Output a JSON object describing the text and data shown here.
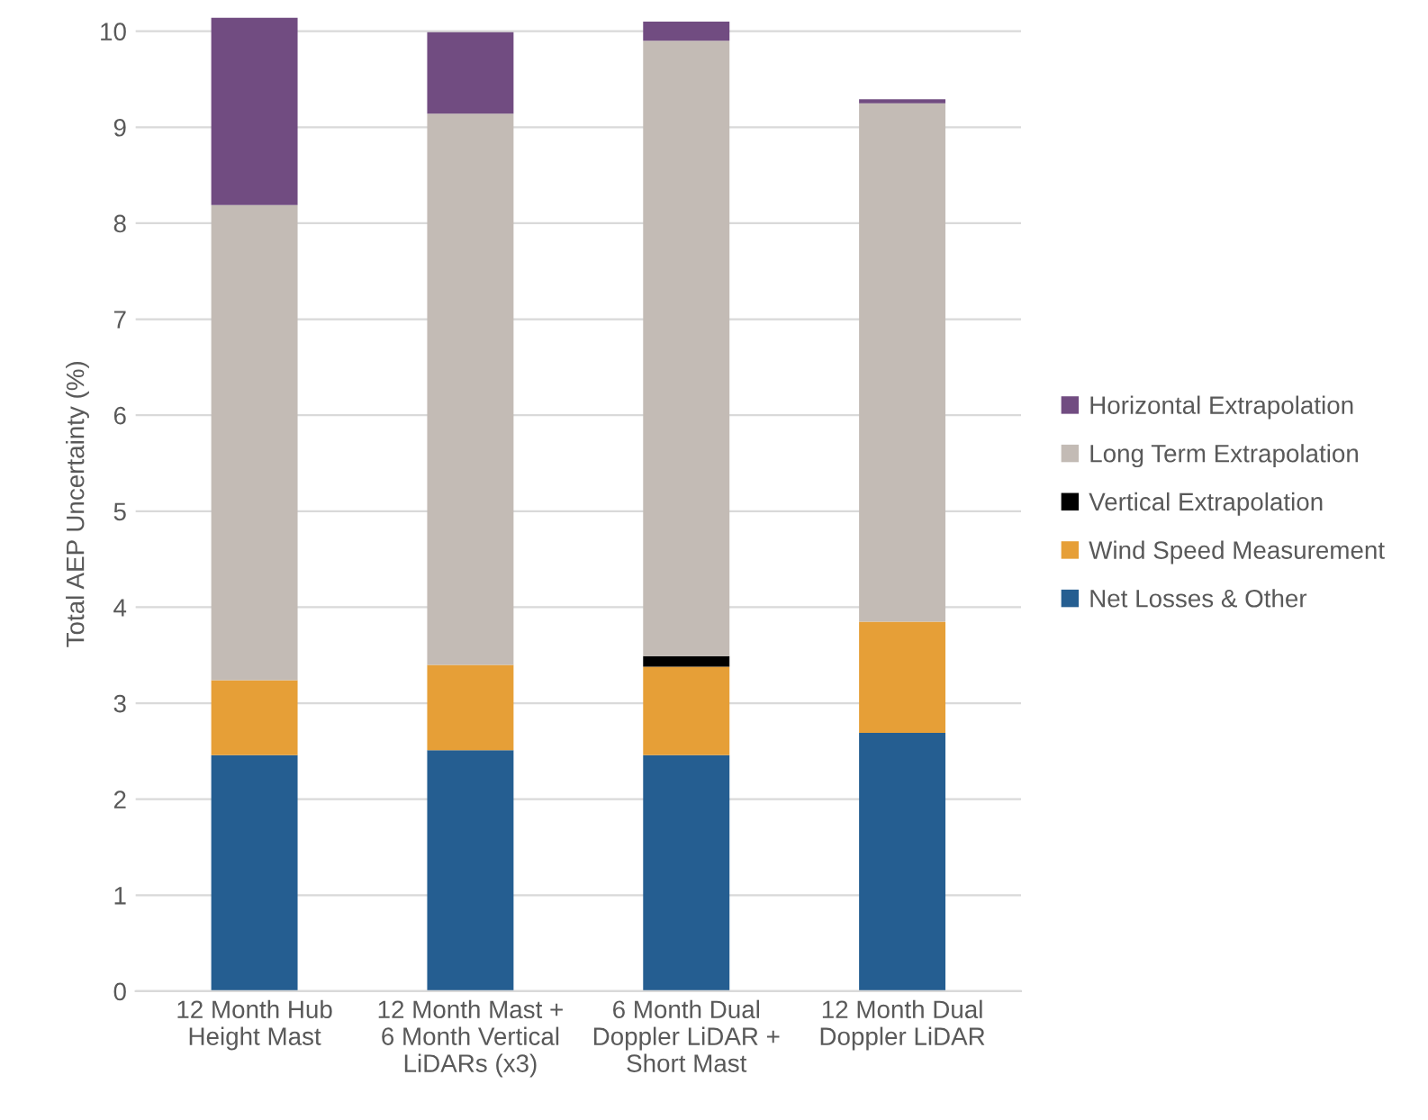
{
  "chart_data": {
    "type": "bar",
    "stacked": true,
    "ylabel": "Total AEP Uncertainty (%)",
    "categories": [
      "12 Month Hub\nHeight Mast",
      "12 Month Mast +\n6 Month Vertical\nLiDARs (x3)",
      "6 Month Dual\nDoppler LiDAR +\nShort Mast",
      "12 Month Dual\nDoppler LiDAR"
    ],
    "series": [
      {
        "name": "Net Losses & Other",
        "color": "#255e91",
        "values": [
          2.46,
          2.51,
          2.46,
          2.69
        ]
      },
      {
        "name": "Wind Speed Measurement",
        "color": "#e69f37",
        "values": [
          0.78,
          0.89,
          0.92,
          1.16
        ]
      },
      {
        "name": "Vertical Extrapolation",
        "color": "#000000",
        "values": [
          0,
          0,
          0.11,
          0
        ]
      },
      {
        "name": "Long Term Extrapolation",
        "color": "#c3bbb5",
        "values": [
          4.95,
          5.74,
          6.41,
          5.4
        ]
      },
      {
        "name": "Horizontal Extrapolation",
        "color": "#714c81",
        "values": [
          1.95,
          0.85,
          0.2,
          0.04
        ]
      }
    ],
    "ylim": [
      0,
      10.15
    ],
    "yticks": [
      0,
      1,
      2,
      3,
      4,
      5,
      6,
      7,
      8,
      9,
      10
    ],
    "grid": "y",
    "legend": "right"
  }
}
